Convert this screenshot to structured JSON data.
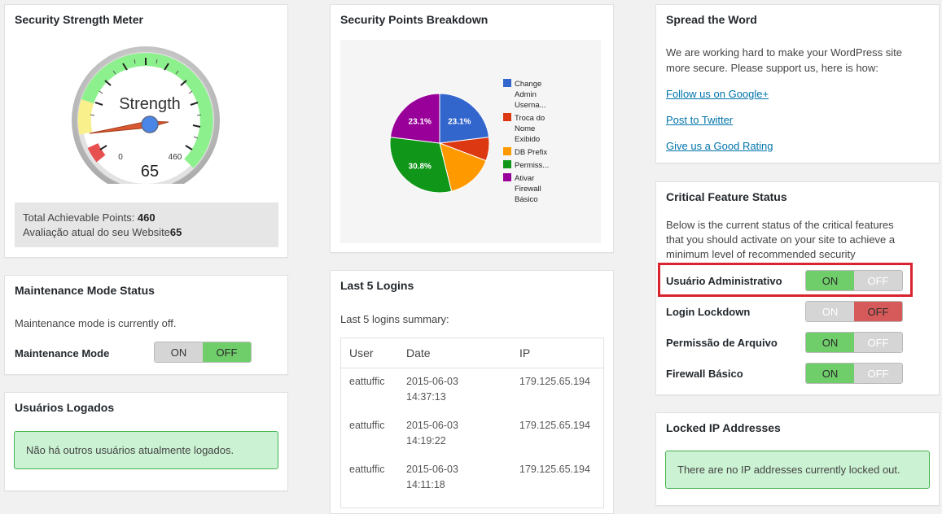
{
  "strength": {
    "title": "Security Strength Meter",
    "gauge_label": "Strength",
    "gauge_value": "65",
    "gauge_min": "0",
    "gauge_max": "460",
    "total_label": "Total Achievable Points: ",
    "total_value": "460",
    "current_label": "Avaliação atual do seu Website",
    "current_value": "65"
  },
  "breakdown": {
    "title": "Security Points Breakdown"
  },
  "chart_data": {
    "type": "pie",
    "categories": [
      "Change Admin Userna...",
      "Troca do Nome Exibido",
      "DB Prefix",
      "Permiss...",
      "Ativar Firewall Básico"
    ],
    "legend_lines": [
      [
        "Change",
        "Admin",
        "Userna..."
      ],
      [
        "Troca do",
        "Nome",
        "Exibido"
      ],
      [
        "DB Prefix"
      ],
      [
        "Permiss..."
      ],
      [
        "Ativar",
        "Firewall",
        "Básico"
      ]
    ],
    "values": [
      23.1,
      7.7,
      15.4,
      30.8,
      23.1
    ],
    "labels": [
      "23.1%",
      "",
      "",
      "30.8%",
      "23.1%"
    ],
    "colors": [
      "#3366cc",
      "#dc3912",
      "#ff9900",
      "#109618",
      "#990099"
    ],
    "legend_position": "right"
  },
  "spread": {
    "title": "Spread the Word",
    "description_line1": "We are working hard to make your WordPress site",
    "description_line2": "more secure. Please support us, here is how:",
    "links": [
      "Follow us on Google+",
      "Post to Twitter",
      "Give us a Good Rating"
    ]
  },
  "maintenance": {
    "title": "Maintenance Mode Status",
    "status_text": "Maintenance mode is currently off.",
    "mode_label": "Maintenance Mode",
    "on_label": "ON",
    "off_label": "OFF"
  },
  "logins": {
    "title": "Last 5 Logins",
    "summary": "Last 5 logins summary:",
    "columns": [
      "User",
      "Date",
      "IP"
    ],
    "rows": [
      {
        "user": "eattuffic",
        "date": "2015-06-03",
        "time": "14:37:13",
        "ip": "179.125.65.194"
      },
      {
        "user": "eattuffic",
        "date": "2015-06-03",
        "time": "14:19:22",
        "ip": "179.125.65.194"
      },
      {
        "user": "eattuffic",
        "date": "2015-06-03",
        "time": "14:11:18",
        "ip": "179.125.65.194"
      }
    ]
  },
  "critical": {
    "title": "Critical Feature Status",
    "description_lines": [
      "Below is the current status of the critical features",
      "that you should activate on your site to achieve a",
      "minimum level of recommended security"
    ],
    "features": [
      {
        "label": "Usuário Administrativo",
        "state": "on"
      },
      {
        "label": "Login Lockdown",
        "state": "off"
      },
      {
        "label": "Permissão de Arquivo",
        "state": "on"
      },
      {
        "label": "Firewall Básico",
        "state": "on"
      }
    ],
    "on_label": "ON",
    "off_label": "OFF",
    "highlight_color": "#d9232e"
  },
  "users": {
    "title": "Usuários Logados",
    "notice": "Não há outros usuários atualmente logados."
  },
  "locked": {
    "title": "Locked IP Addresses",
    "notice": "There are no IP addresses currently locked out."
  }
}
